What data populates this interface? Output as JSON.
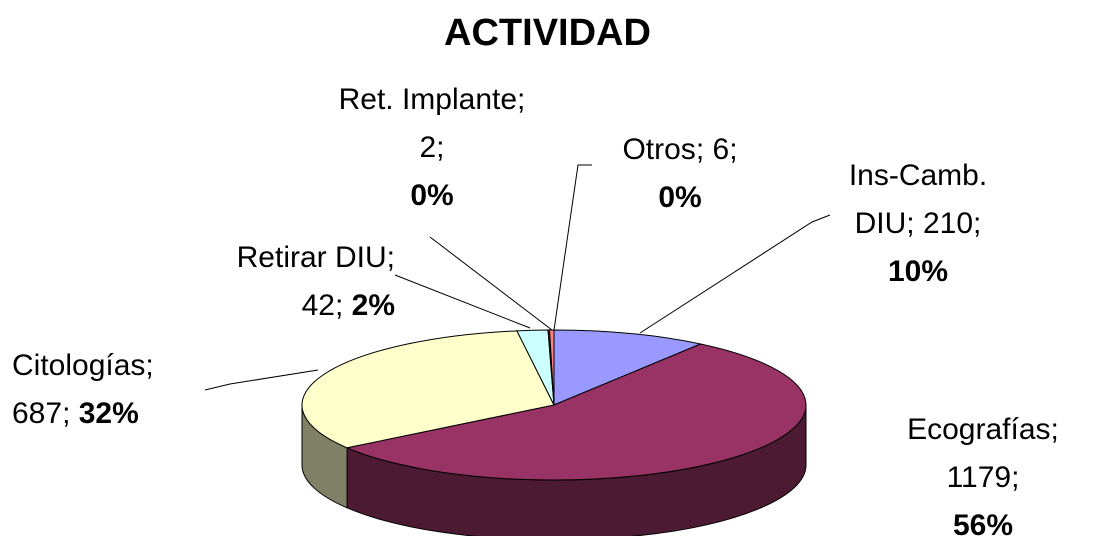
{
  "chart_data": {
    "type": "pie3d",
    "title": "ACTIVIDAD",
    "categories": [
      "Ins-Camb. DIU",
      "Ecografías",
      "Citologías",
      "Retirar DIU",
      "Ret. Implante",
      "Otros"
    ],
    "values": [
      210,
      1179,
      687,
      42,
      2,
      6
    ],
    "percent_labels": [
      "10%",
      "56%",
      "32%",
      "2%",
      "0%",
      "0%"
    ],
    "separator": ";",
    "colors": [
      "#9999ff",
      "#993366",
      "#ffffcc",
      "#ccffff",
      "#660066",
      "#ff8080"
    ]
  }
}
